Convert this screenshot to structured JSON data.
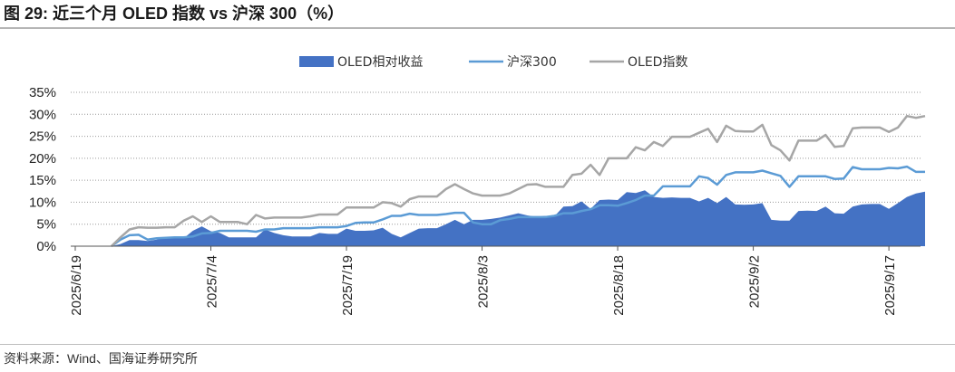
{
  "header": {
    "title": "图 29:  近三个月 OLED 指数 vs 沪深 300（%）"
  },
  "footer": {
    "source": "资料来源：Wind、国海证券研究所"
  },
  "chart_data": {
    "type": "line",
    "title": "近三个月 OLED 指数 vs 沪深 300（%）",
    "xlabel": "",
    "ylabel": "",
    "ylim": [
      0,
      35
    ],
    "yticks": [
      "0%",
      "5%",
      "10%",
      "15%",
      "20%",
      "25%",
      "30%",
      "35%"
    ],
    "xtick_labels": [
      "2025/6/19",
      "2025/7/4",
      "2025/7/19",
      "2025/8/3",
      "2025/8/18",
      "2025/9/2",
      "2025/9/17"
    ],
    "xtick_index": [
      0,
      15,
      30,
      45,
      60,
      75,
      90
    ],
    "grid": "horizontal-dotted",
    "legend_position": "top-center",
    "x_count": 94,
    "colors": {
      "relative": "#4472c4",
      "hs300": "#5b9bd5",
      "oled": "#a6a6a6"
    },
    "series": [
      {
        "name": "OLED相对收益",
        "style": "area",
        "values": [
          null,
          null,
          null,
          null,
          0,
          0.5,
          1.4,
          1.4,
          1.2,
          1.5,
          2.0,
          1.8,
          1.8,
          3.5,
          4.5,
          3.4,
          3.0,
          2.0,
          2.0,
          2.0,
          2.0,
          3.8,
          3.0,
          2.5,
          2.2,
          2.2,
          2.2,
          3.0,
          2.8,
          2.8,
          4.0,
          3.5,
          3.5,
          3.6,
          4.2,
          2.8,
          2.0,
          3.0,
          4.0,
          4.1,
          4.1,
          5.0,
          6.0,
          5.0,
          6.0,
          6.0,
          6.2,
          6.5,
          7.0,
          7.5,
          7.0,
          6.7,
          6.9,
          6.8,
          9.0,
          9.1,
          10.2,
          8.5,
          10.5,
          10.6,
          10.5,
          12.3,
          12.1,
          12.7,
          11.2,
          11.0,
          11.1,
          11.0,
          11.0,
          10.2,
          11.0,
          9.8,
          11.2,
          9.5,
          9.4,
          9.5,
          9.8,
          6.0,
          5.8,
          5.8,
          8.0,
          8.1,
          8.0,
          9.0,
          7.5,
          7.4,
          9.0,
          9.5,
          9.6,
          9.6,
          8.5,
          9.8,
          11.2,
          12.0,
          12.4
        ]
      },
      {
        "name": "沪深300",
        "style": "line",
        "values": [
          null,
          null,
          null,
          null,
          0,
          1.5,
          2.5,
          2.6,
          1.5,
          1.8,
          1.9,
          2.0,
          2.0,
          2.2,
          2.9,
          3.0,
          3.5,
          3.5,
          3.5,
          3.5,
          3.3,
          3.8,
          3.8,
          4.1,
          4.1,
          4.1,
          4.1,
          4.3,
          4.3,
          4.3,
          4.6,
          5.3,
          5.4,
          5.4,
          6.1,
          6.9,
          6.9,
          7.4,
          7.1,
          7.1,
          7.1,
          7.3,
          7.6,
          7.6,
          5.4,
          5.0,
          5.0,
          5.9,
          6.2,
          6.6,
          6.6,
          6.6,
          6.6,
          6.9,
          7.5,
          7.5,
          8.0,
          8.4,
          9.3,
          9.3,
          9.2,
          9.8,
          10.5,
          11.5,
          11.5,
          13.6,
          13.6,
          13.6,
          13.6,
          15.9,
          15.5,
          14.0,
          16.2,
          16.8,
          16.8,
          16.8,
          17.2,
          16.6,
          16.0,
          13.5,
          15.9,
          15.9,
          15.9,
          15.9,
          15.3,
          15.4,
          18.0,
          17.5,
          17.5,
          17.5,
          17.8,
          17.7,
          18.1,
          16.9,
          16.9
        ]
      },
      {
        "name": "OLED指数",
        "style": "line",
        "values": [
          null,
          null,
          null,
          null,
          0,
          2.0,
          3.8,
          4.3,
          4.2,
          4.2,
          4.3,
          4.3,
          5.8,
          6.8,
          5.5,
          6.8,
          5.5,
          5.5,
          5.5,
          5.0,
          7.1,
          6.3,
          6.5,
          6.5,
          6.5,
          6.5,
          6.8,
          7.2,
          7.2,
          7.2,
          8.8,
          8.8,
          8.8,
          8.8,
          10.0,
          9.8,
          9.0,
          10.7,
          11.3,
          11.3,
          11.3,
          13.0,
          14.1,
          13.0,
          12.0,
          11.5,
          11.5,
          11.5,
          12.0,
          13.0,
          14.0,
          14.1,
          13.5,
          13.5,
          13.5,
          16.2,
          16.5,
          18.5,
          16.2,
          20.0,
          20.0,
          20.0,
          22.5,
          21.8,
          23.7,
          22.8,
          24.9,
          24.9,
          24.9,
          25.8,
          26.7,
          23.7,
          27.4,
          26.2,
          26.1,
          26.1,
          27.6,
          23.0,
          21.8,
          19.5,
          24.0,
          24.0,
          24.0,
          25.3,
          22.6,
          22.8,
          26.8,
          27.0,
          27.0,
          27.0,
          26.0,
          27.0,
          29.6,
          29.2,
          29.6
        ]
      }
    ]
  }
}
